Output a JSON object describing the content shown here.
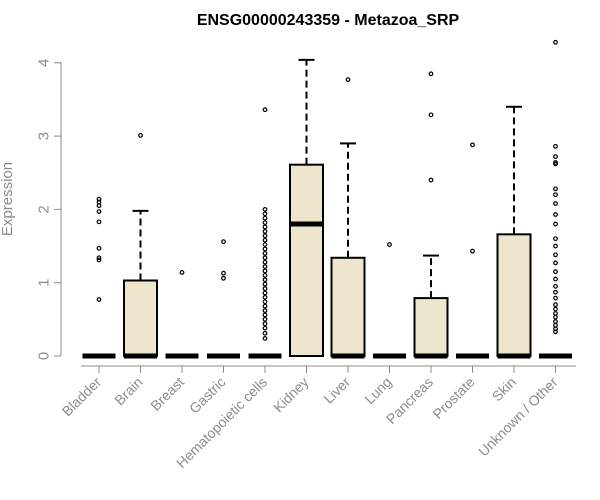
{
  "chart_data": {
    "type": "box",
    "title": "ENSG00000243359 - Metazoa_SRP",
    "xlabel": "",
    "ylabel": "Expression",
    "ylim": [
      0,
      4.3
    ],
    "yticks": [
      0,
      1,
      2,
      3,
      4
    ],
    "colors": {
      "box_fill": "#ede6cc",
      "stroke": "#000000",
      "axis": "#8c8c8c"
    },
    "categories": [
      "Bladder",
      "Brain",
      "Breast",
      "Gastric",
      "Hematopoietic cells",
      "Kidney",
      "Liver",
      "Lung",
      "Pancreas",
      "Prostate",
      "Skin",
      "Unknown / Other"
    ],
    "boxes": [
      {
        "category": "Bladder",
        "q1": 0,
        "median": 0,
        "q3": 0,
        "whisker_low": 0,
        "whisker_high": 0,
        "outliers": [
          0.77,
          1.31,
          1.34,
          1.47,
          1.83,
          1.97,
          2.05,
          2.1,
          2.14
        ]
      },
      {
        "category": "Brain",
        "q1": 0,
        "median": 0,
        "q3": 1.03,
        "whisker_low": 0,
        "whisker_high": 1.98,
        "outliers": [
          3.01
        ]
      },
      {
        "category": "Breast",
        "q1": 0,
        "median": 0,
        "q3": 0,
        "whisker_low": 0,
        "whisker_high": 0,
        "outliers": [
          1.14
        ]
      },
      {
        "category": "Gastric",
        "q1": 0,
        "median": 0,
        "q3": 0,
        "whisker_low": 0,
        "whisker_high": 0,
        "outliers": [
          1.06,
          1.13,
          1.56
        ]
      },
      {
        "category": "Hematopoietic cells",
        "q1": 0,
        "median": 0,
        "q3": 0,
        "whisker_low": 0,
        "whisker_high": 0,
        "outliers": [
          0.24,
          0.31,
          0.38,
          0.44,
          0.5,
          0.56,
          0.62,
          0.68,
          0.74,
          0.8,
          0.86,
          0.92,
          0.98,
          1.04,
          1.1,
          1.16,
          1.22,
          1.28,
          1.34,
          1.4,
          1.46,
          1.52,
          1.58,
          1.64,
          1.7,
          1.76,
          1.82,
          1.88,
          1.94,
          2.0,
          3.36
        ]
      },
      {
        "category": "Kidney",
        "q1": 0,
        "median": 1.8,
        "q3": 2.61,
        "whisker_low": 0,
        "whisker_high": 4.04,
        "outliers": []
      },
      {
        "category": "Liver",
        "q1": 0,
        "median": 0,
        "q3": 1.34,
        "whisker_low": 0,
        "whisker_high": 2.9,
        "outliers": [
          3.77
        ]
      },
      {
        "category": "Lung",
        "q1": 0,
        "median": 0,
        "q3": 0,
        "whisker_low": 0,
        "whisker_high": 0,
        "outliers": [
          1.52
        ]
      },
      {
        "category": "Pancreas",
        "q1": 0,
        "median": 0,
        "q3": 0.79,
        "whisker_low": 0,
        "whisker_high": 1.37,
        "outliers": [
          2.4,
          3.29,
          3.85
        ]
      },
      {
        "category": "Prostate",
        "q1": 0,
        "median": 0,
        "q3": 0,
        "whisker_low": 0,
        "whisker_high": 0,
        "outliers": [
          1.43,
          2.88
        ]
      },
      {
        "category": "Skin",
        "q1": 0,
        "median": 0,
        "q3": 1.66,
        "whisker_low": 0,
        "whisker_high": 3.4,
        "outliers": []
      },
      {
        "category": "Unknown / Other",
        "q1": 0,
        "median": 0,
        "q3": 0,
        "whisker_low": 0,
        "whisker_high": 0,
        "outliers": [
          0.33,
          0.37,
          0.42,
          0.47,
          0.53,
          0.58,
          0.64,
          0.7,
          0.79,
          0.87,
          0.95,
          1.05,
          1.15,
          1.27,
          1.38,
          1.5,
          1.6,
          1.8,
          1.93,
          2.08,
          2.2,
          2.28,
          2.62,
          2.64,
          2.72,
          2.86,
          4.28
        ]
      }
    ]
  }
}
